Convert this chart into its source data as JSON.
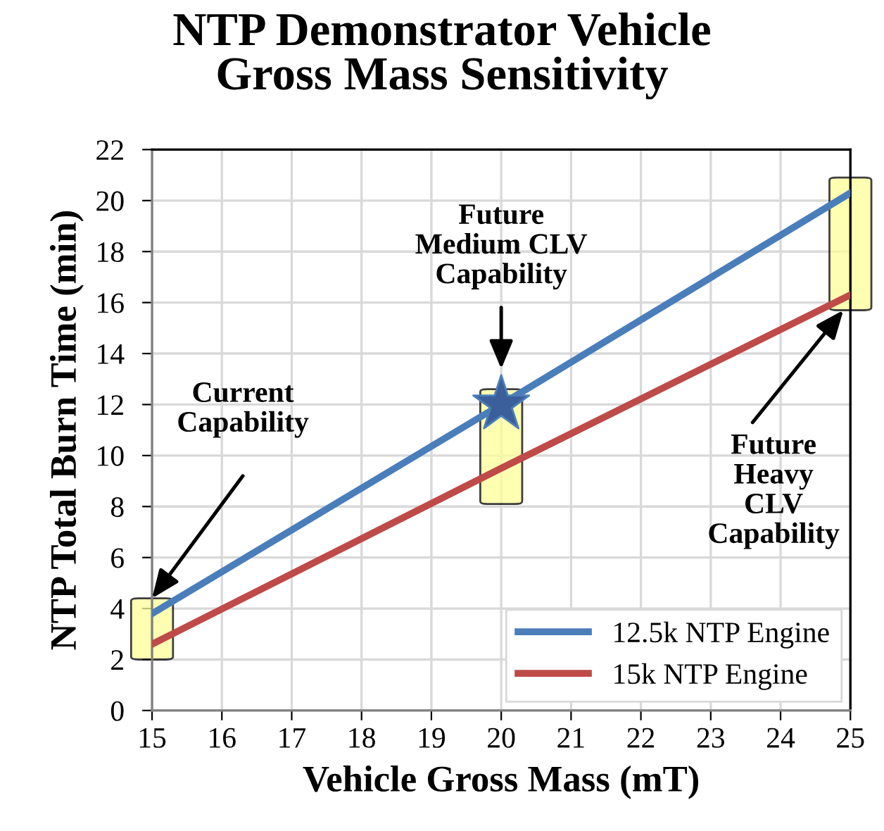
{
  "chart_data": {
    "type": "line",
    "title": "NTP Demonstrator Vehicle\nGross Mass Sensitivity",
    "xlabel": "Vehicle Gross Mass (mT)",
    "ylabel": "NTP Total Burn Time (min)",
    "xlim": [
      15,
      25
    ],
    "xticks": [
      15,
      16,
      17,
      18,
      19,
      20,
      21,
      22,
      23,
      24,
      25
    ],
    "ylim": [
      0,
      22
    ],
    "yticks": [
      0,
      2,
      4,
      6,
      8,
      10,
      12,
      14,
      16,
      18,
      20,
      22
    ],
    "grid": true,
    "legend": "bottom right",
    "line_style": "solid",
    "series": [
      {
        "name": "12.5k NTP Engine",
        "color": "#4a7ebb",
        "x": [
          15,
          20,
          25
        ],
        "values": [
          3.8,
          12.0,
          20.3
        ]
      },
      {
        "name": "15k NTP Engine",
        "color": "#be4b48",
        "x": [
          15,
          20,
          25
        ],
        "values": [
          2.6,
          9.5,
          16.3
        ]
      },
      {
        "type": "scatter",
        "color": "#3b5f9a",
        "marker": "star",
        "x": [
          20
        ],
        "values": [
          12.0
        ]
      }
    ],
    "annotations": [
      "Current\nCapability",
      "Future\nMedium CLV\nCapability",
      "Future\nHeavy\nCLV\nCapability"
    ]
  }
}
